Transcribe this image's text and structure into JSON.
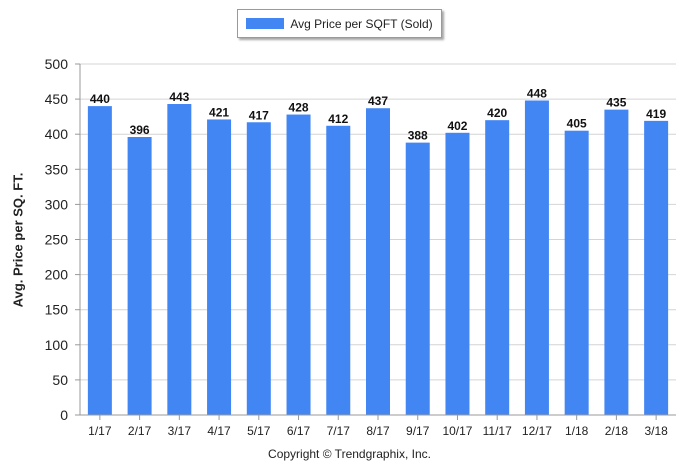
{
  "legend": {
    "label": "Avg Price per SQFT (Sold)"
  },
  "footer": {
    "copyright": "Copyright © Trendgraphix, Inc."
  },
  "colors": {
    "bar": "#4286f4",
    "grid": "#d4d4d4",
    "axis": "#999999"
  },
  "chart_data": {
    "type": "bar",
    "categories": [
      "1/17",
      "2/17",
      "3/17",
      "4/17",
      "5/17",
      "6/17",
      "7/17",
      "8/17",
      "9/17",
      "10/17",
      "11/17",
      "12/17",
      "1/18",
      "2/18",
      "3/18"
    ],
    "series": [
      {
        "name": "Avg Price per SQFT (Sold)",
        "values": [
          440,
          396,
          443,
          421,
          417,
          428,
          412,
          437,
          388,
          402,
          420,
          448,
          405,
          435,
          419
        ]
      }
    ],
    "ylabel": "Avg. Price per SQ. FT.",
    "xlabel": "",
    "ylim": [
      0,
      500
    ],
    "yticks": [
      0,
      50,
      100,
      150,
      200,
      250,
      300,
      350,
      400,
      450,
      500
    ],
    "grid": true,
    "data_labels": true,
    "legend_position": "top-center"
  }
}
